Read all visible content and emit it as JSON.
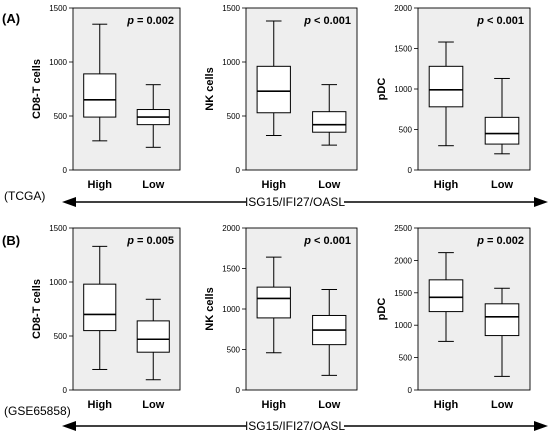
{
  "panel_labels": {
    "a": "(A)",
    "b": "(B)"
  },
  "datasets": {
    "a": "(TCGA)",
    "b": "(GSE65858)"
  },
  "axis_title": "ISG15/IFI27/OASL",
  "colors": {
    "panel_bg": "#eeeeee",
    "box_fill": "#ffffff",
    "stroke": "#000000"
  },
  "chart_data": [
    {
      "type": "box",
      "panel": "A",
      "ylabel": "CD8-T cells",
      "p_prefix": "p",
      "p_value": " = 0.002",
      "ylim": [
        0,
        1500
      ],
      "yticks": [
        "0",
        "500",
        "1000",
        "1500"
      ],
      "categories": [
        "High",
        "Low"
      ],
      "boxes": [
        {
          "min": 270,
          "q1": 490,
          "median": 650,
          "q3": 890,
          "max": 1350
        },
        {
          "min": 210,
          "q1": 420,
          "median": 490,
          "q3": 560,
          "max": 790
        }
      ]
    },
    {
      "type": "box",
      "panel": "A",
      "ylabel": "NK cells",
      "p_prefix": "p",
      "p_value": " < 0.001",
      "ylim": [
        0,
        1500
      ],
      "yticks": [
        "0",
        "500",
        "1000",
        "1500"
      ],
      "categories": [
        "High",
        "Low"
      ],
      "boxes": [
        {
          "min": 320,
          "q1": 530,
          "median": 730,
          "q3": 960,
          "max": 1380
        },
        {
          "min": 230,
          "q1": 350,
          "median": 420,
          "q3": 540,
          "max": 790
        }
      ]
    },
    {
      "type": "box",
      "panel": "A",
      "ylabel": "pDC",
      "p_prefix": "p",
      "p_value": " < 0.001",
      "ylim": [
        0,
        2000
      ],
      "yticks": [
        "0",
        "500",
        "1000",
        "1500",
        "2000"
      ],
      "categories": [
        "High",
        "Low"
      ],
      "boxes": [
        {
          "min": 300,
          "q1": 780,
          "median": 990,
          "q3": 1280,
          "max": 1580
        },
        {
          "min": 200,
          "q1": 320,
          "median": 450,
          "q3": 650,
          "max": 1130
        }
      ]
    },
    {
      "type": "box",
      "panel": "B",
      "ylabel": "CD8-T cells",
      "p_prefix": "p",
      "p_value": " = 0.005",
      "ylim": [
        0,
        1500
      ],
      "yticks": [
        "0",
        "500",
        "1000",
        "1500"
      ],
      "categories": [
        "High",
        "Low"
      ],
      "boxes": [
        {
          "min": 190,
          "q1": 550,
          "median": 700,
          "q3": 980,
          "max": 1330
        },
        {
          "min": 95,
          "q1": 350,
          "median": 470,
          "q3": 640,
          "max": 840
        }
      ]
    },
    {
      "type": "box",
      "panel": "B",
      "ylabel": "NK cells",
      "p_prefix": "p",
      "p_value": " < 0.001",
      "ylim": [
        0,
        2000
      ],
      "yticks": [
        "0",
        "500",
        "1000",
        "1500",
        "2000"
      ],
      "categories": [
        "High",
        "Low"
      ],
      "boxes": [
        {
          "min": 460,
          "q1": 890,
          "median": 1130,
          "q3": 1270,
          "max": 1640
        },
        {
          "min": 180,
          "q1": 560,
          "median": 740,
          "q3": 920,
          "max": 1240
        }
      ]
    },
    {
      "type": "box",
      "panel": "B",
      "ylabel": "pDC",
      "p_prefix": "p",
      "p_value": " = 0.002",
      "ylim": [
        0,
        2500
      ],
      "yticks": [
        "0",
        "500",
        "1000",
        "1500",
        "2000",
        "2500"
      ],
      "categories": [
        "High",
        "Low"
      ],
      "boxes": [
        {
          "min": 750,
          "q1": 1210,
          "median": 1430,
          "q3": 1700,
          "max": 2120
        },
        {
          "min": 210,
          "q1": 840,
          "median": 1130,
          "q3": 1330,
          "max": 1570
        }
      ]
    }
  ]
}
